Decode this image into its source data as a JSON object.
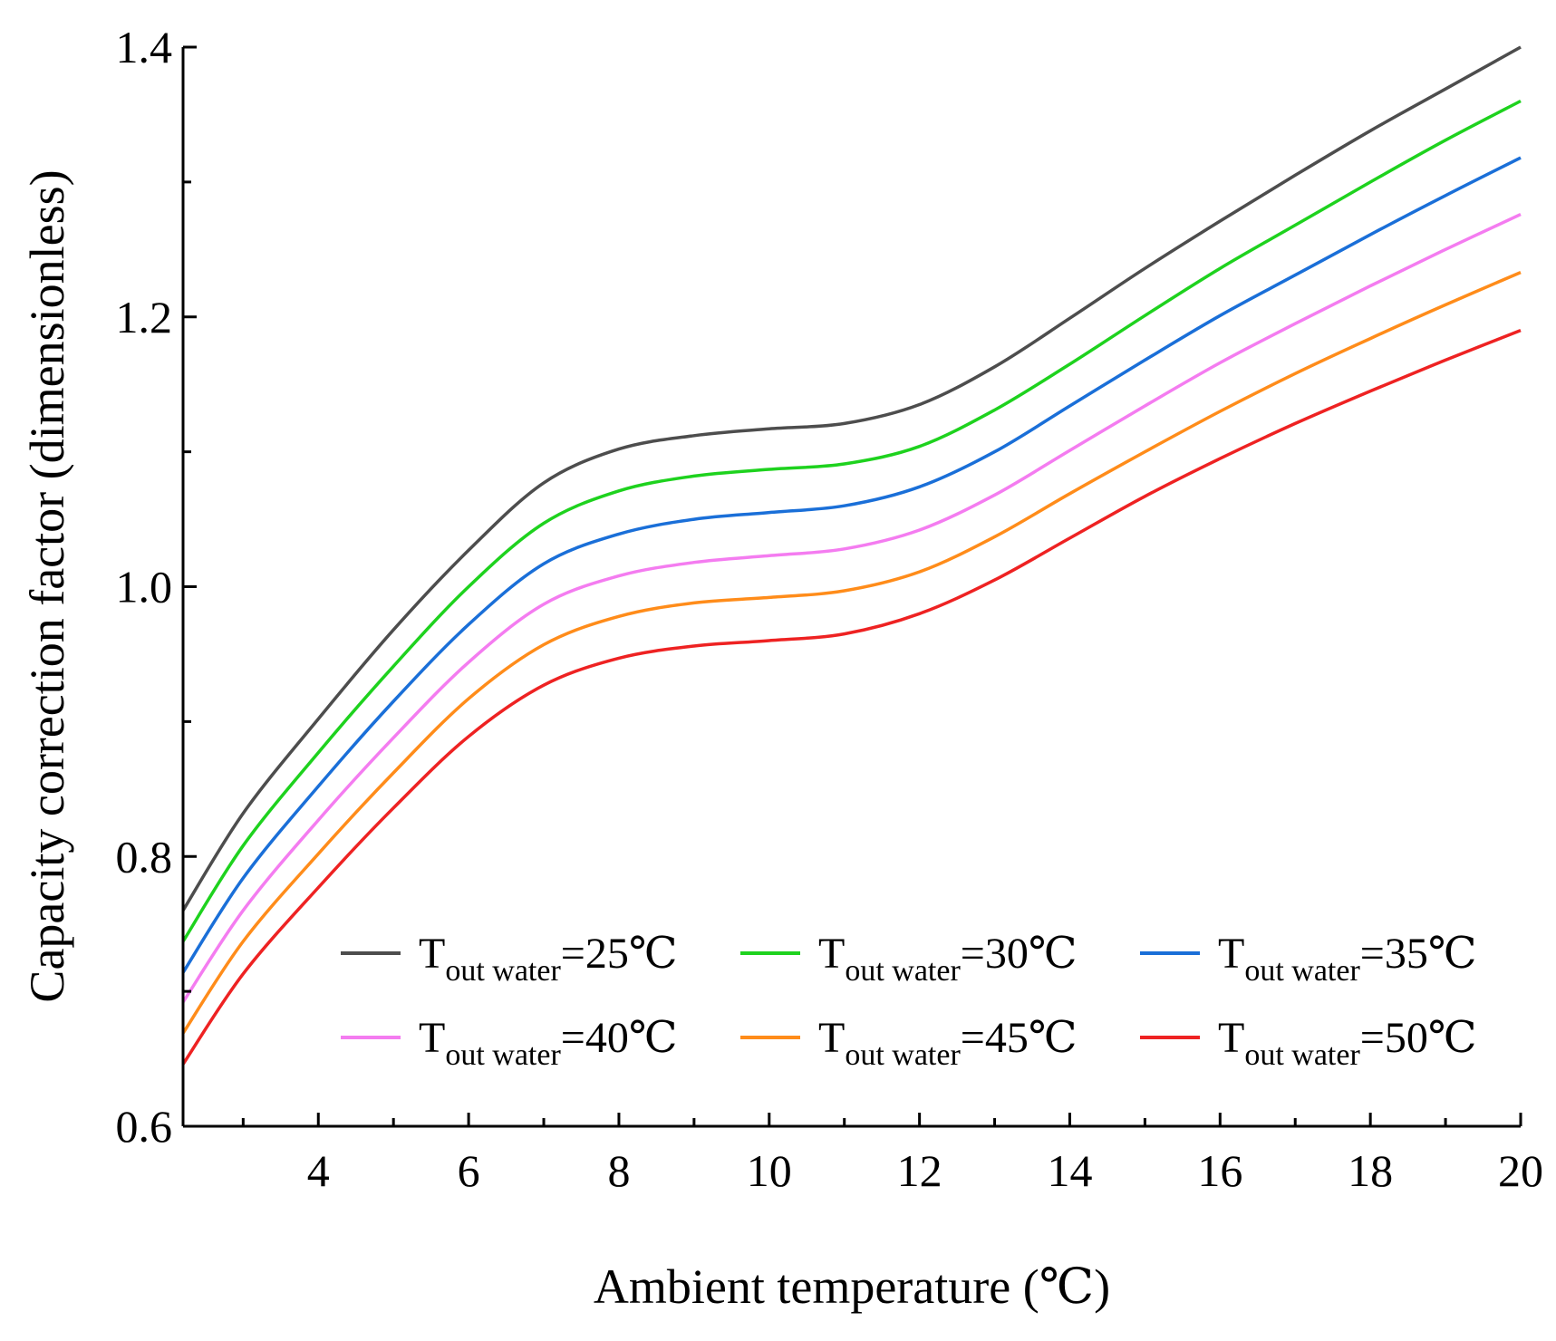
{
  "chart_data": {
    "type": "line",
    "title": "",
    "xlabel": "Ambient temperature (℃)",
    "ylabel": "Capacity correction factor (dimensionless)",
    "xlim": [
      2.2,
      20
    ],
    "ylim": [
      0.6,
      1.4
    ],
    "x_ticks": [
      4,
      6,
      8,
      10,
      12,
      14,
      16,
      18,
      20
    ],
    "x_tick_labels": [
      "4",
      "6",
      "8",
      "10",
      "12",
      "14",
      "16",
      "18",
      "20"
    ],
    "y_ticks": [
      0.6,
      0.8,
      1.0,
      1.2,
      1.4
    ],
    "y_tick_labels": [
      "0.6",
      "0.8",
      "1.0",
      "1.2",
      "1.4"
    ],
    "grid": false,
    "legend_position": "bottom-right, inside plot, 3 columns x 2 rows",
    "x": [
      2.2,
      3,
      4,
      5,
      6,
      7,
      8,
      9,
      10,
      11,
      12,
      13,
      14,
      15,
      16,
      17,
      18,
      19,
      20
    ],
    "series": [
      {
        "name": "T_out water=25℃",
        "legend_main": "T",
        "legend_sub": "out water",
        "legend_tail": "=25℃",
        "color": "#4d4d4d",
        "values": [
          0.76,
          0.832,
          0.902,
          0.968,
          1.027,
          1.077,
          1.102,
          1.112,
          1.117,
          1.121,
          1.135,
          1.163,
          1.199,
          1.236,
          1.271,
          1.305,
          1.338,
          1.369,
          1.4
        ]
      },
      {
        "name": "T_out water=30℃",
        "legend_main": "T",
        "legend_sub": "out water",
        "legend_tail": "=30℃",
        "color": "#1ed21e",
        "values": [
          0.737,
          0.808,
          0.877,
          0.941,
          1.0,
          1.047,
          1.071,
          1.082,
          1.087,
          1.091,
          1.104,
          1.131,
          1.165,
          1.201,
          1.236,
          1.268,
          1.3,
          1.331,
          1.36
        ]
      },
      {
        "name": "T_out water=35℃",
        "legend_main": "T",
        "legend_sub": "out water",
        "legend_tail": "=35℃",
        "color": "#1a6fd8",
        "values": [
          0.714,
          0.784,
          0.852,
          0.915,
          0.972,
          1.017,
          1.039,
          1.05,
          1.055,
          1.06,
          1.074,
          1.1,
          1.134,
          1.168,
          1.201,
          1.231,
          1.261,
          1.29,
          1.318
        ]
      },
      {
        "name": "T_out water=40℃",
        "legend_main": "T",
        "legend_sub": "out water",
        "legend_tail": "=40℃",
        "color": "#f47cf0",
        "values": [
          0.692,
          0.76,
          0.827,
          0.888,
          0.944,
          0.987,
          1.008,
          1.018,
          1.023,
          1.028,
          1.042,
          1.068,
          1.101,
          1.134,
          1.166,
          1.195,
          1.223,
          1.25,
          1.276
        ]
      },
      {
        "name": "T_out water=45℃",
        "legend_main": "T",
        "legend_sub": "out water",
        "legend_tail": "=45℃",
        "color": "#ff8c1a",
        "values": [
          0.669,
          0.737,
          0.802,
          0.862,
          0.917,
          0.957,
          0.978,
          0.988,
          0.992,
          0.997,
          1.011,
          1.037,
          1.069,
          1.1,
          1.13,
          1.158,
          1.184,
          1.209,
          1.233
        ]
      },
      {
        "name": "T_out water=50℃",
        "legend_main": "T",
        "legend_sub": "out water",
        "legend_tail": "=50℃",
        "color": "#ee2222",
        "values": [
          0.646,
          0.713,
          0.777,
          0.836,
          0.889,
          0.927,
          0.947,
          0.956,
          0.96,
          0.965,
          0.98,
          1.005,
          1.036,
          1.067,
          1.095,
          1.121,
          1.145,
          1.168,
          1.19
        ]
      }
    ]
  }
}
